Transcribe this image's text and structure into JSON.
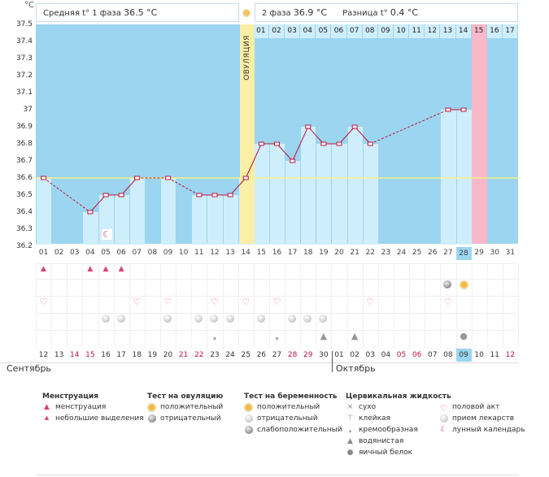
{
  "header": {
    "unit": "°C",
    "phase1_label": "Средняя t° 1 фаза",
    "phase1_value": "36.5 °C",
    "phase2_label": "2 фаза",
    "phase2_value": "36.9 °C",
    "diff_label": "Разница t°",
    "diff_value": "0.4 °C"
  },
  "ovulation_label": "ОВУЛЯЦИЯ",
  "cycle_days": [
    "01",
    "02",
    "03",
    "04",
    "05",
    "06",
    "07",
    "08",
    "09",
    "10",
    "11",
    "12",
    "13",
    "14",
    "15",
    "16",
    "17",
    "18",
    "19",
    "20",
    "21",
    "22",
    "23",
    "24",
    "25",
    "26",
    "27",
    "28",
    "29",
    "30",
    "31"
  ],
  "top_days_after_ovulation": [
    "01",
    "02",
    "03",
    "04",
    "05",
    "06",
    "07",
    "08",
    "09",
    "10",
    "11",
    "12",
    "13",
    "14",
    "15",
    "16",
    "17"
  ],
  "highlight_day": "28",
  "colors": {
    "plot_bg": "#9bd5ef",
    "bar": "#cfeefb",
    "ovulation": "#fbeea6",
    "pink_day": "#f9b8c8",
    "line": "#c0143c",
    "coverline": "#f5f08a"
  },
  "chart_data": {
    "type": "line",
    "x": [
      "01",
      "02",
      "03",
      "04",
      "05",
      "06",
      "07",
      "08",
      "09",
      "10",
      "11",
      "12",
      "13",
      "14",
      "15",
      "16",
      "17",
      "18",
      "19",
      "20",
      "21",
      "22",
      "23",
      "24",
      "25",
      "26",
      "27",
      "28",
      "29",
      "30",
      "31"
    ],
    "y": [
      36.6,
      null,
      null,
      36.4,
      36.5,
      36.5,
      36.6,
      null,
      36.6,
      null,
      36.5,
      36.5,
      36.5,
      36.6,
      36.8,
      36.8,
      36.7,
      36.9,
      36.8,
      36.8,
      36.9,
      36.8,
      null,
      null,
      null,
      null,
      37.0,
      37.0,
      null,
      null,
      null
    ],
    "coverline": 36.6,
    "ylim": [
      36.2,
      37.5
    ],
    "yticks": [
      36.2,
      36.3,
      36.4,
      36.5,
      36.6,
      36.7,
      36.8,
      36.9,
      37,
      37.1,
      37.2,
      37.3,
      37.4,
      37.5
    ],
    "ytick_labels": [
      "36.2",
      "36.3",
      "36.4",
      "36.5",
      "36.6",
      "36.7",
      "36.8",
      "36.9",
      "37",
      "37.1",
      "37.2",
      "37.3",
      "37.4",
      "37.5"
    ],
    "ovulation_day": "14",
    "pink_day": "29"
  },
  "calendar": {
    "dates": [
      "12",
      "13",
      "14",
      "15",
      "16",
      "17",
      "18",
      "19",
      "20",
      "21",
      "22",
      "23",
      "24",
      "25",
      "26",
      "27",
      "28",
      "29",
      "30",
      "01",
      "02",
      "03",
      "04",
      "05",
      "06",
      "07",
      "08",
      "09",
      "10",
      "11",
      "12"
    ],
    "red": [
      false,
      false,
      true,
      true,
      false,
      false,
      false,
      false,
      false,
      true,
      true,
      false,
      false,
      false,
      false,
      false,
      true,
      true,
      false,
      false,
      false,
      false,
      false,
      true,
      true,
      false,
      false,
      false,
      false,
      false,
      true
    ],
    "highlight_date": "09",
    "month1": "Сентябрь",
    "month2": "Октябрь"
  },
  "legend": {
    "menstruation": {
      "title": "Менструация",
      "items": [
        "менструация",
        "небольшие выделения"
      ]
    },
    "ovulation_test": {
      "title": "Тест на овуляцию",
      "items": [
        "положительный",
        "отрицательный"
      ]
    },
    "pregnancy_test": {
      "title": "Тест на беременность",
      "items": [
        "положительный",
        "отрицательный",
        "слабоположительный"
      ]
    },
    "cervical": {
      "title": "Цервикальная жидкость",
      "items": [
        "сухо",
        "клейкая",
        "кремообразная",
        "водянистая",
        "яичный белок"
      ]
    },
    "other": {
      "items": [
        "половой акт",
        "прием лекарств",
        "лунный календарь"
      ]
    }
  },
  "icons": {
    "heart": "heart-icon",
    "drop": "drop-icon",
    "pill": "pill-icon",
    "sun": "ovulation-test-icon",
    "moon": "moon-icon"
  }
}
